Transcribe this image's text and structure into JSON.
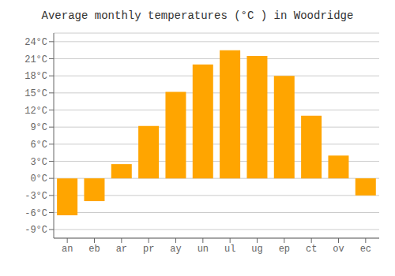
{
  "chart_data": {
    "type": "bar",
    "title": "Average monthly temperatures (°C ) in Woodridge",
    "categories": [
      "an",
      "eb",
      "ar",
      "pr",
      "ay",
      "un",
      "ul",
      "ug",
      "ep",
      "ct",
      "ov",
      "ec"
    ],
    "values": [
      -6.5,
      -4.0,
      2.5,
      9.2,
      15.2,
      20.0,
      22.5,
      21.5,
      18.0,
      11.0,
      4.0,
      -3.0
    ],
    "color": "#FFA500",
    "ylim": [
      -10.5,
      25.5
    ],
    "yticks": [
      {
        "value": -9,
        "label": "-9°C"
      },
      {
        "value": -6,
        "label": "-6°C"
      },
      {
        "value": -3,
        "label": "-3°C"
      },
      {
        "value": 0,
        "label": "0°C"
      },
      {
        "value": 3,
        "label": "3°C"
      },
      {
        "value": 6,
        "label": "6°C"
      },
      {
        "value": 9,
        "label": "9°C"
      },
      {
        "value": 12,
        "label": "12°C"
      },
      {
        "value": 15,
        "label": "15°C"
      },
      {
        "value": 18,
        "label": "18°C"
      },
      {
        "value": 21,
        "label": "21°C"
      },
      {
        "value": 24,
        "label": "24°C"
      }
    ],
    "grid": true
  }
}
